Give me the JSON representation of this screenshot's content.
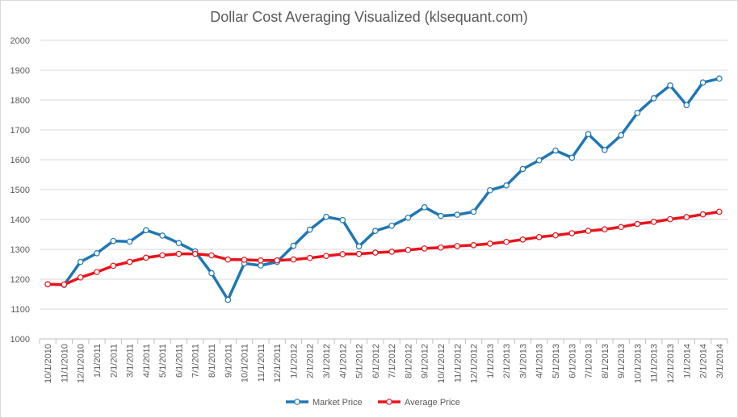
{
  "chart_data": {
    "type": "line",
    "title": "Dollar Cost Averaging Visualized (klsequant.com)",
    "xlabel": "",
    "ylabel": "",
    "ylim": [
      1000,
      2000
    ],
    "yticks": [
      "2000",
      "1900",
      "1800",
      "1700",
      "1600",
      "1500",
      "1400",
      "1300",
      "1200",
      "1100",
      "1000"
    ],
    "grid": "horizontal",
    "legend_position": "bottom",
    "categories": [
      "10/1/2010",
      "11/1/2010",
      "12/1/2010",
      "1/1/2011",
      "2/1/2011",
      "3/1/2011",
      "4/1/2011",
      "5/1/2011",
      "6/1/2011",
      "7/1/2011",
      "8/1/2011",
      "9/1/2011",
      "10/1/2011",
      "11/1/2011",
      "12/1/2011",
      "1/1/2012",
      "2/1/2012",
      "3/1/2012",
      "4/1/2012",
      "5/1/2012",
      "6/1/2012",
      "7/1/2012",
      "8/1/2012",
      "9/1/2012",
      "10/1/2012",
      "11/1/2012",
      "12/1/2012",
      "1/1/2013",
      "2/1/2013",
      "3/1/2013",
      "4/1/2013",
      "5/1/2013",
      "6/1/2013",
      "7/1/2013",
      "8/1/2013",
      "9/1/2013",
      "10/1/2013",
      "11/1/2013",
      "12/1/2013",
      "1/1/2014",
      "2/1/2014",
      "3/1/2014"
    ],
    "series": [
      {
        "name": "Market Price",
        "color": "#1f77b4",
        "values": [
          1183,
          1181,
          1258,
          1287,
          1328,
          1326,
          1364,
          1346,
          1321,
          1293,
          1220,
          1131,
          1253,
          1246,
          1258,
          1312,
          1366,
          1409,
          1398,
          1310,
          1362,
          1379,
          1406,
          1441,
          1412,
          1416,
          1426,
          1498,
          1514,
          1569,
          1598,
          1631,
          1607,
          1686,
          1633,
          1682,
          1757,
          1806,
          1849,
          1783,
          1859,
          1872
        ]
      },
      {
        "name": "Average Price",
        "color": "#e8141b",
        "values": [
          1183,
          1182,
          1206,
          1224,
          1245,
          1258,
          1272,
          1280,
          1285,
          1285,
          1280,
          1266,
          1265,
          1263,
          1263,
          1266,
          1271,
          1278,
          1284,
          1285,
          1289,
          1292,
          1298,
          1303,
          1306,
          1311,
          1314,
          1319,
          1325,
          1333,
          1341,
          1347,
          1354,
          1362,
          1367,
          1375,
          1385,
          1392,
          1401,
          1408,
          1417,
          1426
        ]
      }
    ]
  }
}
